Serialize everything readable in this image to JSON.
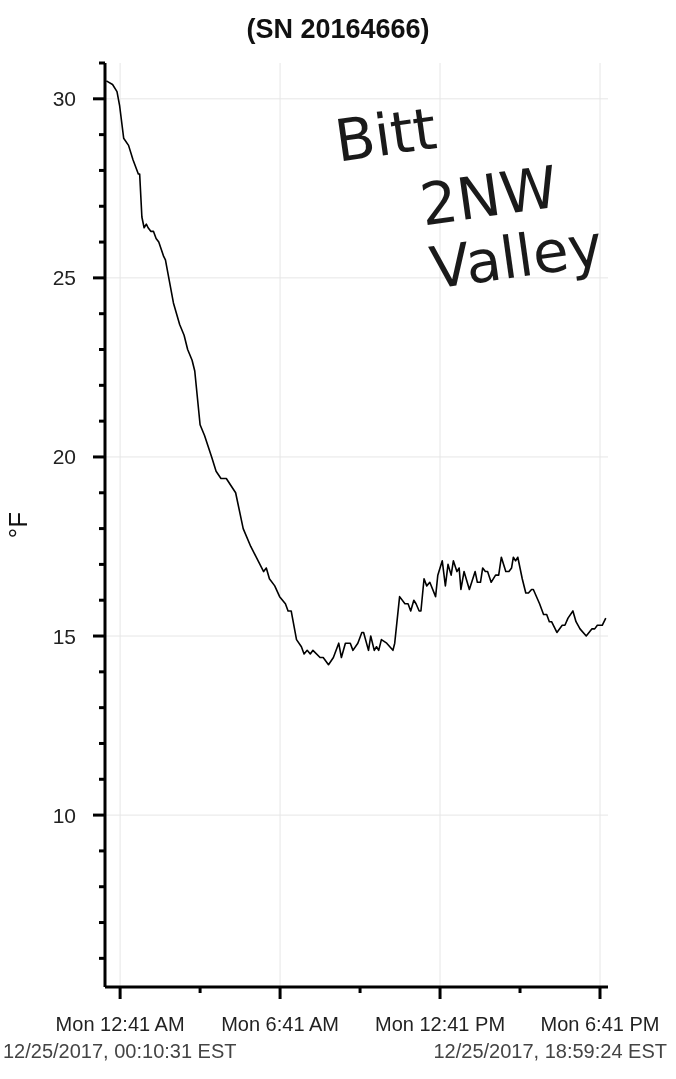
{
  "chart_data": {
    "type": "line",
    "title": "(SN 20164666)",
    "ylabel": "°F",
    "annotations": [
      "Bitt 2NW Valley",
      "12/25/2017, 00:10:31 EST",
      "12/25/2017, 18:59:24 EST"
    ],
    "x": [
      "2017-12-25T00:10",
      "2017-12-25T00:24",
      "2017-12-25T00:34",
      "2017-12-25T00:40",
      "2017-12-25T00:49",
      "2017-12-25T01:00",
      "2017-12-25T01:10",
      "2017-12-25T01:22",
      "2017-12-25T01:25",
      "2017-12-25T01:30",
      "2017-12-25T01:35",
      "2017-12-25T01:40",
      "2017-12-25T01:44",
      "2017-12-25T01:50",
      "2017-12-25T01:56",
      "2017-12-25T02:02",
      "2017-12-25T02:08",
      "2017-12-25T02:19",
      "2017-12-25T02:23",
      "2017-12-25T02:32",
      "2017-12-25T02:41",
      "2017-12-25T02:55",
      "2017-12-25T03:05",
      "2017-12-25T03:13",
      "2017-12-25T03:23",
      "2017-12-25T03:29",
      "2017-12-25T03:41",
      "2017-12-25T03:51",
      "2017-12-25T03:59",
      "2017-12-25T04:07",
      "2017-12-25T04:17",
      "2017-12-25T04:28",
      "2017-12-25T04:40",
      "2017-12-25T05:01",
      "2017-12-25T05:18",
      "2017-12-25T05:35",
      "2017-12-25T06:04",
      "2017-12-25T06:10",
      "2017-12-25T06:17",
      "2017-12-25T06:29",
      "2017-12-25T06:40",
      "2017-12-25T06:53",
      "2017-12-25T06:59",
      "2017-12-25T07:06",
      "2017-12-25T07:18",
      "2017-12-25T07:29",
      "2017-12-25T07:35",
      "2017-12-25T07:42",
      "2017-12-25T07:49",
      "2017-12-25T07:55",
      "2017-12-25T08:11",
      "2017-12-25T08:18",
      "2017-12-25T08:30",
      "2017-12-25T08:41",
      "2017-12-25T08:53",
      "2017-12-25T08:59",
      "2017-12-25T09:08",
      "2017-12-25T09:14",
      "2017-12-25T09:19",
      "2017-12-25T09:25",
      "2017-12-25T09:36",
      "2017-12-25T09:45",
      "2017-12-25T09:49",
      "2017-12-25T10:00",
      "2017-12-25T10:05",
      "2017-12-25T10:13",
      "2017-12-25T10:18",
      "2017-12-25T10:23",
      "2017-12-25T10:29",
      "2017-12-25T10:41",
      "2017-12-25T10:55",
      "2017-12-25T10:59",
      "2017-12-25T11:10",
      "2017-12-25T11:22",
      "2017-12-25T11:29",
      "2017-12-25T11:35",
      "2017-12-25T11:42",
      "2017-12-25T11:47",
      "2017-12-25T11:54",
      "2017-12-25T11:58",
      "2017-12-25T12:05",
      "2017-12-25T12:11",
      "2017-12-25T12:18",
      "2017-12-25T12:31",
      "2017-12-25T12:36",
      "2017-12-25T12:46",
      "2017-12-25T12:53",
      "2017-12-25T12:59",
      "2017-12-25T13:06",
      "2017-12-25T13:11",
      "2017-12-25T13:19",
      "2017-12-25T13:24",
      "2017-12-25T13:28",
      "2017-12-25T13:35",
      "2017-12-25T13:47",
      "2017-12-25T14:00",
      "2017-12-25T14:05",
      "2017-12-25T14:12",
      "2017-12-25T14:17",
      "2017-12-25T14:23",
      "2017-12-25T14:28",
      "2017-12-25T14:36",
      "2017-12-25T14:46",
      "2017-12-25T14:53",
      "2017-12-25T14:59",
      "2017-12-25T15:09",
      "2017-12-25T15:16",
      "2017-12-25T15:22",
      "2017-12-25T15:26",
      "2017-12-25T15:31",
      "2017-12-25T15:36",
      "2017-12-25T15:46",
      "2017-12-25T15:54",
      "2017-12-25T16:00",
      "2017-12-25T16:07",
      "2017-12-25T16:11",
      "2017-12-25T16:25",
      "2017-12-25T16:34",
      "2017-12-25T16:41",
      "2017-12-25T16:47",
      "2017-12-25T16:52",
      "2017-12-25T17:04",
      "2017-12-25T17:16",
      "2017-12-25T17:22",
      "2017-12-25T17:29",
      "2017-12-25T17:40",
      "2017-12-25T17:47",
      "2017-12-25T17:56",
      "2017-12-25T18:10",
      "2017-12-25T18:23",
      "2017-12-25T18:29",
      "2017-12-25T18:35",
      "2017-12-25T18:41",
      "2017-12-25T18:46",
      "2017-12-25T18:54"
    ],
    "values": [
      30.5,
      30.4,
      30.2,
      29.8,
      28.9,
      28.7,
      28.3,
      27.9,
      27.9,
      26.7,
      26.4,
      26.5,
      26.4,
      26.3,
      26.3,
      26.1,
      26.0,
      25.6,
      25.5,
      24.9,
      24.3,
      23.7,
      23.4,
      23.0,
      22.7,
      22.4,
      20.9,
      20.6,
      20.3,
      20.0,
      19.6,
      19.4,
      19.4,
      19.0,
      18.0,
      17.5,
      16.8,
      16.9,
      16.6,
      16.4,
      16.1,
      15.9,
      15.7,
      15.7,
      14.9,
      14.7,
      14.5,
      14.6,
      14.5,
      14.6,
      14.4,
      14.4,
      14.2,
      14.4,
      14.8,
      14.4,
      14.8,
      14.8,
      14.8,
      14.6,
      14.8,
      15.1,
      15.1,
      14.6,
      15.0,
      14.6,
      14.7,
      14.6,
      14.9,
      14.8,
      14.6,
      14.8,
      16.1,
      15.9,
      15.9,
      15.7,
      16.0,
      15.9,
      15.7,
      15.7,
      16.6,
      16.4,
      16.5,
      16.1,
      16.7,
      17.1,
      16.4,
      17.0,
      16.7,
      17.1,
      16.8,
      16.9,
      16.3,
      16.8,
      16.3,
      16.8,
      16.5,
      16.5,
      16.9,
      16.8,
      16.8,
      16.5,
      16.7,
      16.7,
      17.2,
      16.8,
      16.8,
      16.9,
      17.2,
      17.1,
      17.2,
      16.6,
      16.2,
      16.2,
      16.3,
      16.3,
      15.9,
      15.6,
      15.6,
      15.4,
      15.4,
      15.1,
      15.3,
      15.3,
      15.5,
      15.7,
      15.4,
      15.2,
      15.0,
      15.2,
      15.2,
      15.3,
      15.3,
      15.3,
      15.5
    ],
    "color": "#000000",
    "xlim": [
      "2017-12-25T00:07",
      "2017-12-25T18:59"
    ],
    "xticks": [
      {
        "value": "2017-12-25T00:41",
        "label": "Mon 12:41 AM"
      },
      {
        "value": "2017-12-25T03:41",
        "label": null
      },
      {
        "value": "2017-12-25T06:41",
        "label": "Mon 6:41 AM"
      },
      {
        "value": "2017-12-25T09:41",
        "label": null
      },
      {
        "value": "2017-12-25T12:41",
        "label": "Mon 12:41 PM"
      },
      {
        "value": "2017-12-25T15:41",
        "label": null
      },
      {
        "value": "2017-12-25T18:41",
        "label": "Mon 6:41 PM"
      }
    ],
    "ylim": [
      5.2,
      31
    ],
    "yticks": [
      {
        "value": 6,
        "label": null
      },
      {
        "value": 7,
        "label": null
      },
      {
        "value": 8,
        "label": null
      },
      {
        "value": 9,
        "label": null
      },
      10,
      {
        "value": 11,
        "label": null
      },
      {
        "value": 12,
        "label": null
      },
      {
        "value": 13,
        "label": null
      },
      {
        "value": 14,
        "label": null
      },
      15,
      {
        "value": 16,
        "label": null
      },
      {
        "value": 17,
        "label": null
      },
      {
        "value": 18,
        "label": null
      },
      {
        "value": 19,
        "label": null
      },
      20,
      {
        "value": 21,
        "label": null
      },
      {
        "value": 22,
        "label": null
      },
      {
        "value": 23,
        "label": null
      },
      {
        "value": 24,
        "label": null
      },
      25,
      {
        "value": 26,
        "label": null
      },
      {
        "value": 27,
        "label": null
      },
      {
        "value": 28,
        "label": null
      },
      {
        "value": 29,
        "label": null
      },
      30,
      {
        "value": 31,
        "label": null
      }
    ],
    "grid": true
  }
}
